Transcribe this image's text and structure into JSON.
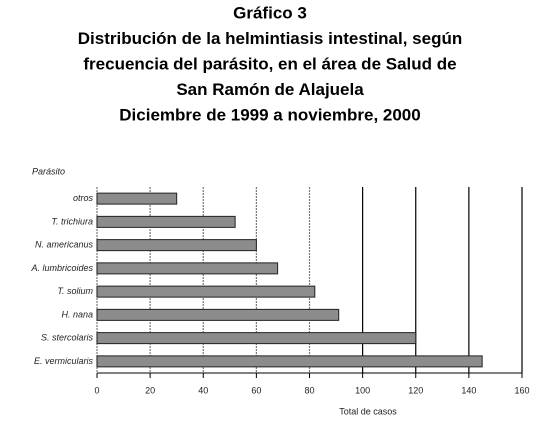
{
  "chart_data": {
    "type": "bar",
    "orientation": "horizontal",
    "title": [
      "Gráfico 3",
      "Distribución de la helmintiasis intestinal, según",
      "frecuencia del parásito, en el área de Salud de",
      "San Ramón de Alajuela",
      "Diciembre de 1999 a noviembre, 2000"
    ],
    "ylabel": "Parásito",
    "xlabel": "Total de casos",
    "categories": [
      "otros",
      "T. trichiura",
      "N. americanus",
      "A. lumbricoides",
      "T. solium",
      "H. nana",
      "S. stercolaris",
      "E. vermicularis"
    ],
    "values": [
      30,
      52,
      60,
      68,
      82,
      91,
      120,
      145
    ],
    "color": "#8c8c8c",
    "xlim": [
      0,
      160
    ],
    "xticks": [
      0,
      20,
      40,
      60,
      80,
      100,
      120,
      140,
      160
    ],
    "grid": true
  }
}
